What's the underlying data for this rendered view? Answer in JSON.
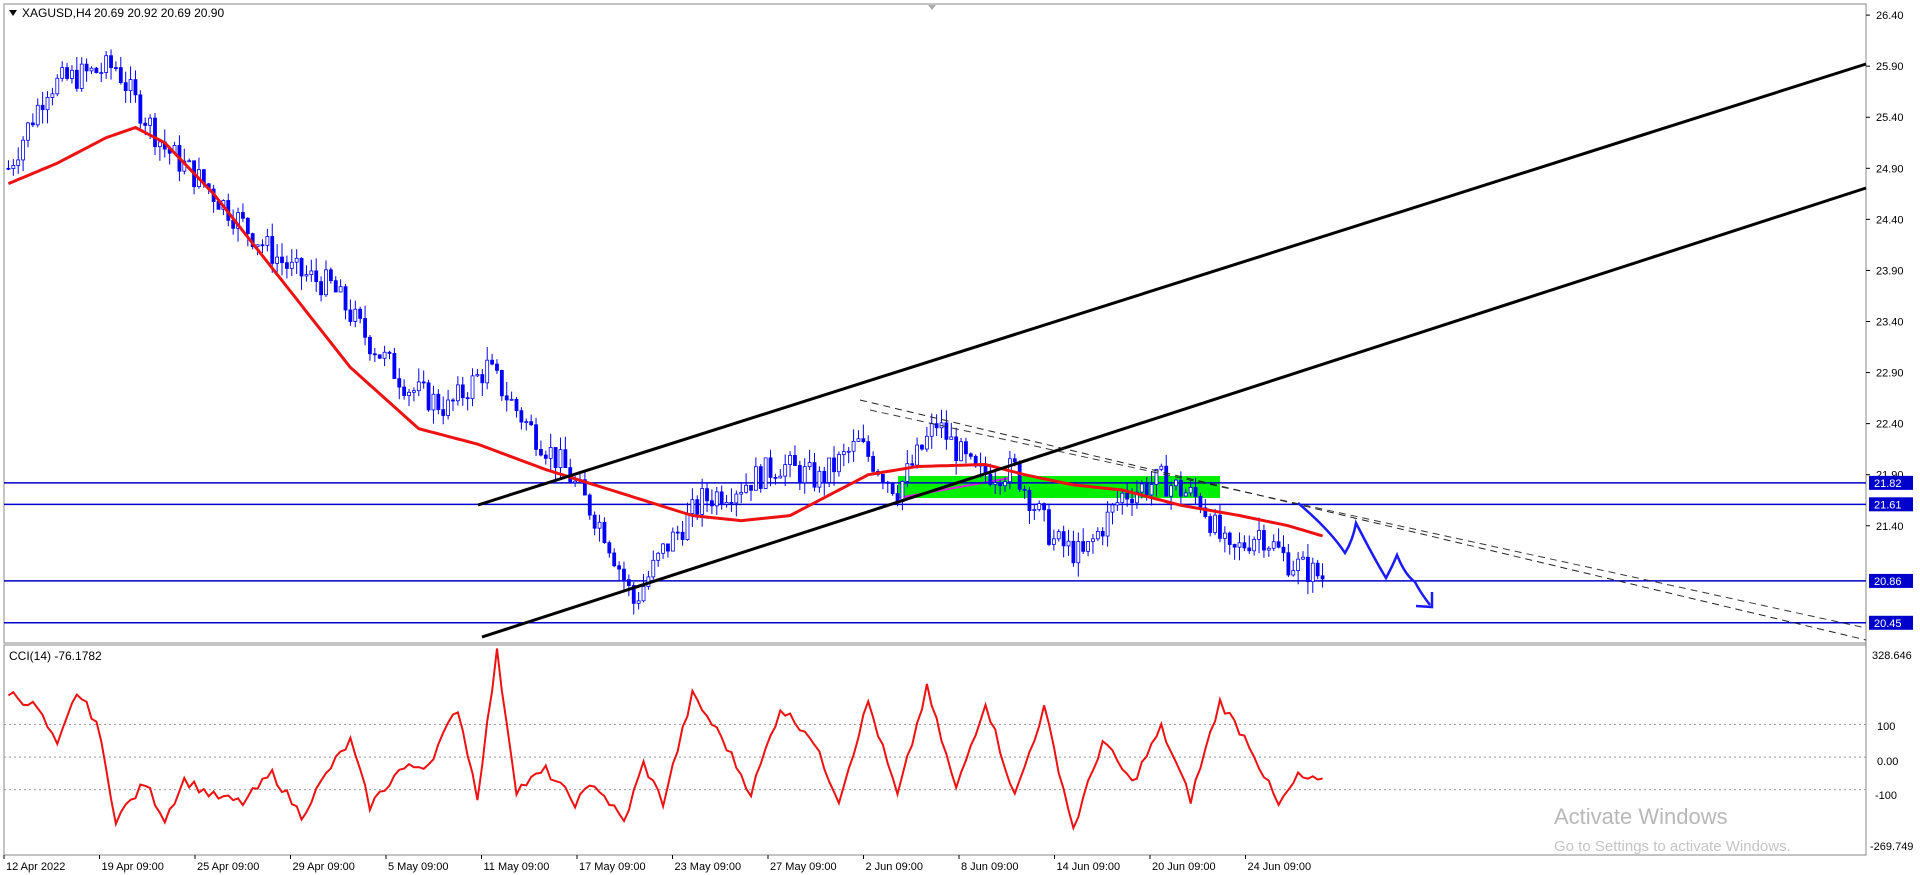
{
  "header": {
    "symbol": "XAGUSD,H4",
    "ohlc": "20.69 20.92 20.69 20.90"
  },
  "indicator": {
    "label": "CCI(14) -76.1782",
    "levels": [
      "100",
      "0.00",
      "-100"
    ],
    "scale_top": "328.646",
    "scale_bottom": "-269.749"
  },
  "watermark": {
    "line1": "Activate Windows",
    "line2": "Go to Settings to activate Windows."
  },
  "colors": {
    "candle": "#0000ff",
    "ma": "#ee1111",
    "cci": "#ee1111",
    "channel": "#000000",
    "level_line": "#0000cc",
    "zone": "#00ee00",
    "forecast": "#1a1aff"
  },
  "chart_data": {
    "type": "candlestick",
    "instrument": "XAGUSD",
    "timeframe": "H4",
    "x_ticks": [
      "12 Apr 2022",
      "19 Apr 09:00",
      "25 Apr 09:00",
      "29 Apr 09:00",
      "5 May 09:00",
      "11 May 09:00",
      "17 May 09:00",
      "23 May 09:00",
      "27 May 09:00",
      "2 Jun 09:00",
      "8 Jun 09:00",
      "14 Jun 09:00",
      "20 Jun 09:00",
      "24 Jun 09:00"
    ],
    "y_ticks": [
      "26.40",
      "25.90",
      "25.40",
      "24.90",
      "24.40",
      "23.90",
      "23.40",
      "22.90",
      "22.40",
      "21.90",
      "21.40"
    ],
    "ylim": [
      20.35,
      26.45
    ],
    "n_bars": 270,
    "price_anchors": [
      [
        0,
        24.9
      ],
      [
        8,
        25.7
      ],
      [
        14,
        25.8
      ],
      [
        22,
        25.9
      ],
      [
        26,
        25.55
      ],
      [
        32,
        25.1
      ],
      [
        40,
        24.75
      ],
      [
        50,
        24.25
      ],
      [
        58,
        23.9
      ],
      [
        66,
        23.75
      ],
      [
        74,
        23.2
      ],
      [
        82,
        22.75
      ],
      [
        90,
        22.55
      ],
      [
        98,
        22.95
      ],
      [
        106,
        22.4
      ],
      [
        114,
        21.95
      ],
      [
        122,
        21.35
      ],
      [
        128,
        20.65
      ],
      [
        134,
        21.15
      ],
      [
        142,
        21.65
      ],
      [
        150,
        21.8
      ],
      [
        158,
        22.0
      ],
      [
        166,
        21.85
      ],
      [
        174,
        22.2
      ],
      [
        182,
        21.75
      ],
      [
        190,
        22.4
      ],
      [
        198,
        21.9
      ],
      [
        206,
        21.95
      ],
      [
        214,
        21.25
      ],
      [
        220,
        21.1
      ],
      [
        228,
        21.7
      ],
      [
        236,
        21.85
      ],
      [
        244,
        21.65
      ],
      [
        250,
        21.1
      ],
      [
        256,
        21.35
      ],
      [
        262,
        21.05
      ],
      [
        269,
        20.9
      ]
    ],
    "ma_anchors": [
      [
        0,
        24.75
      ],
      [
        10,
        24.95
      ],
      [
        20,
        25.2
      ],
      [
        26,
        25.3
      ],
      [
        32,
        25.15
      ],
      [
        42,
        24.65
      ],
      [
        56,
        23.8
      ],
      [
        70,
        22.95
      ],
      [
        84,
        22.35
      ],
      [
        96,
        22.2
      ],
      [
        110,
        21.95
      ],
      [
        120,
        21.8
      ],
      [
        130,
        21.65
      ],
      [
        140,
        21.5
      ],
      [
        150,
        21.45
      ],
      [
        160,
        21.5
      ],
      [
        166,
        21.65
      ],
      [
        176,
        21.9
      ],
      [
        186,
        21.98
      ],
      [
        200,
        22.0
      ],
      [
        208,
        21.9
      ],
      [
        218,
        21.8
      ],
      [
        228,
        21.75
      ],
      [
        240,
        21.6
      ],
      [
        252,
        21.5
      ],
      [
        262,
        21.4
      ],
      [
        269,
        21.3
      ]
    ],
    "horizontal_levels": [
      21.82,
      21.61,
      20.86,
      20.45
    ],
    "level_labels": [
      "21.82",
      "21.61",
      "20.86",
      "20.45"
    ],
    "cci_ylim": [
      -269.749,
      328.646
    ],
    "cci_levels": [
      100,
      0,
      -100
    ],
    "cci_anchors": [
      [
        0,
        200
      ],
      [
        6,
        150
      ],
      [
        10,
        30
      ],
      [
        14,
        200
      ],
      [
        18,
        110
      ],
      [
        22,
        -190
      ],
      [
        28,
        -80
      ],
      [
        32,
        -190
      ],
      [
        36,
        -70
      ],
      [
        42,
        -120
      ],
      [
        48,
        -140
      ],
      [
        54,
        -50
      ],
      [
        60,
        -180
      ],
      [
        66,
        -30
      ],
      [
        70,
        50
      ],
      [
        74,
        -150
      ],
      [
        80,
        -40
      ],
      [
        86,
        -20
      ],
      [
        92,
        150
      ],
      [
        96,
        -120
      ],
      [
        100,
        320
      ],
      [
        104,
        -100
      ],
      [
        110,
        -40
      ],
      [
        116,
        -140
      ],
      [
        120,
        -80
      ],
      [
        126,
        -200
      ],
      [
        130,
        -20
      ],
      [
        134,
        -140
      ],
      [
        140,
        190
      ],
      [
        146,
        60
      ],
      [
        152,
        -110
      ],
      [
        158,
        150
      ],
      [
        164,
        70
      ],
      [
        170,
        -130
      ],
      [
        176,
        170
      ],
      [
        182,
        -120
      ],
      [
        188,
        210
      ],
      [
        194,
        -100
      ],
      [
        200,
        170
      ],
      [
        206,
        -120
      ],
      [
        212,
        150
      ],
      [
        218,
        -220
      ],
      [
        224,
        50
      ],
      [
        230,
        -80
      ],
      [
        236,
        90
      ],
      [
        242,
        -130
      ],
      [
        248,
        170
      ],
      [
        254,
        40
      ],
      [
        260,
        -150
      ],
      [
        264,
        -60
      ],
      [
        269,
        -80
      ]
    ]
  }
}
